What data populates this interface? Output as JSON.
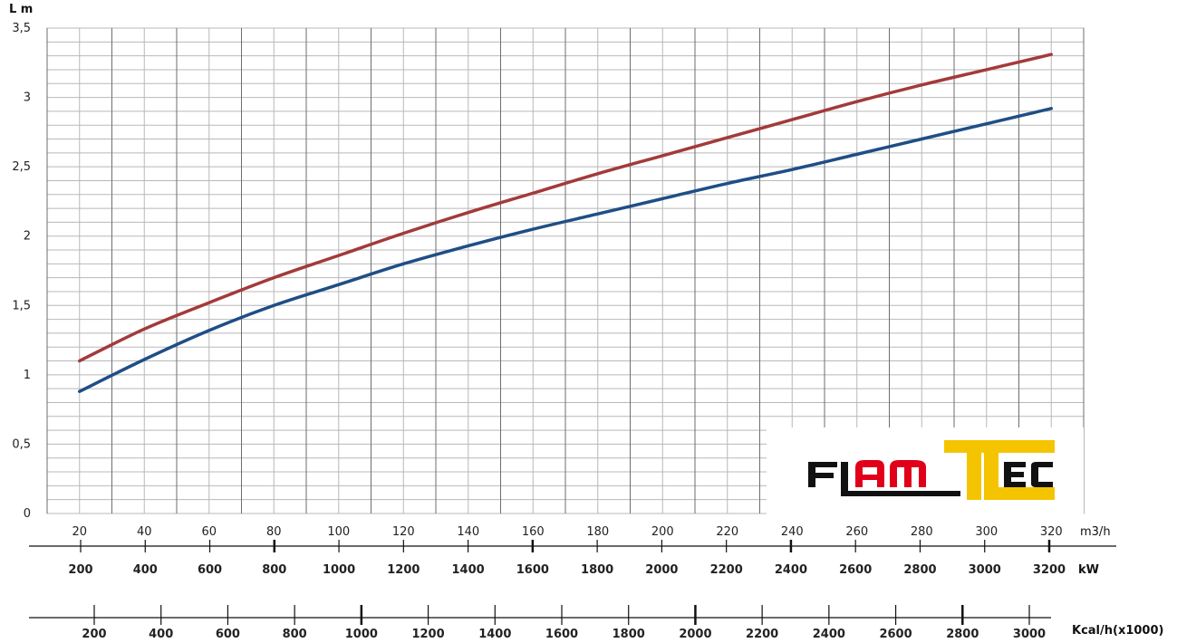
{
  "chart_data": {
    "type": "line",
    "ylabel": "L m",
    "ylim": [
      0,
      3.5
    ],
    "yticks": [
      "0",
      "0,5",
      "1",
      "1,5",
      "2",
      "2,5",
      "3",
      "3,5"
    ],
    "ytick_values": [
      0,
      0.5,
      1,
      1.5,
      2,
      2.5,
      3,
      3.5
    ],
    "xlim": [
      10,
      330
    ],
    "grid": true,
    "x_axes": [
      {
        "unit": "m3/h",
        "ticks": [
          "20",
          "40",
          "60",
          "80",
          "100",
          "120",
          "140",
          "160",
          "180",
          "200",
          "220",
          "240",
          "260",
          "280",
          "300",
          "320"
        ],
        "tick_values": [
          20,
          40,
          60,
          80,
          100,
          120,
          140,
          160,
          180,
          200,
          220,
          240,
          260,
          280,
          300,
          320
        ]
      },
      {
        "unit": "kW",
        "ticks": [
          "200",
          "400",
          "600",
          "800",
          "1000",
          "1200",
          "1400",
          "1600",
          "1800",
          "2000",
          "2200",
          "2400",
          "2600",
          "2800",
          "3000",
          "3200"
        ],
        "tick_values": [
          200,
          400,
          600,
          800,
          1000,
          1200,
          1400,
          1600,
          1800,
          2000,
          2200,
          2400,
          2600,
          2800,
          3000,
          3200
        ]
      },
      {
        "unit": "Kcal/h(x1000)",
        "ticks": [
          "200",
          "400",
          "600",
          "800",
          "1000",
          "1200",
          "1400",
          "1600",
          "1800",
          "2000",
          "2200",
          "2400",
          "2600",
          "2800",
          "3000"
        ],
        "tick_values": [
          200,
          400,
          600,
          800,
          1000,
          1200,
          1400,
          1600,
          1800,
          2000,
          2200,
          2400,
          2600,
          2800,
          3000
        ]
      }
    ],
    "series": [
      {
        "color": "#a33a3a",
        "x": [
          20,
          40,
          60,
          80,
          100,
          120,
          140,
          160,
          180,
          200,
          220,
          240,
          260,
          280,
          300,
          320
        ],
        "values": [
          1.1,
          1.33,
          1.52,
          1.7,
          1.86,
          2.02,
          2.17,
          2.31,
          2.45,
          2.58,
          2.71,
          2.84,
          2.97,
          3.09,
          3.2,
          3.31
        ]
      },
      {
        "color": "#1f4e86",
        "x": [
          20,
          40,
          60,
          80,
          100,
          120,
          140,
          160,
          180,
          200,
          220,
          240,
          260,
          280,
          300,
          320
        ],
        "values": [
          0.88,
          1.11,
          1.32,
          1.5,
          1.65,
          1.8,
          1.93,
          2.05,
          2.16,
          2.27,
          2.38,
          2.48,
          2.59,
          2.7,
          2.81,
          2.92
        ]
      }
    ]
  },
  "logo": {
    "text": "FLAMTEC",
    "colors": {
      "black": "#111111",
      "red": "#e1001a",
      "yellow": "#f5c400"
    }
  }
}
